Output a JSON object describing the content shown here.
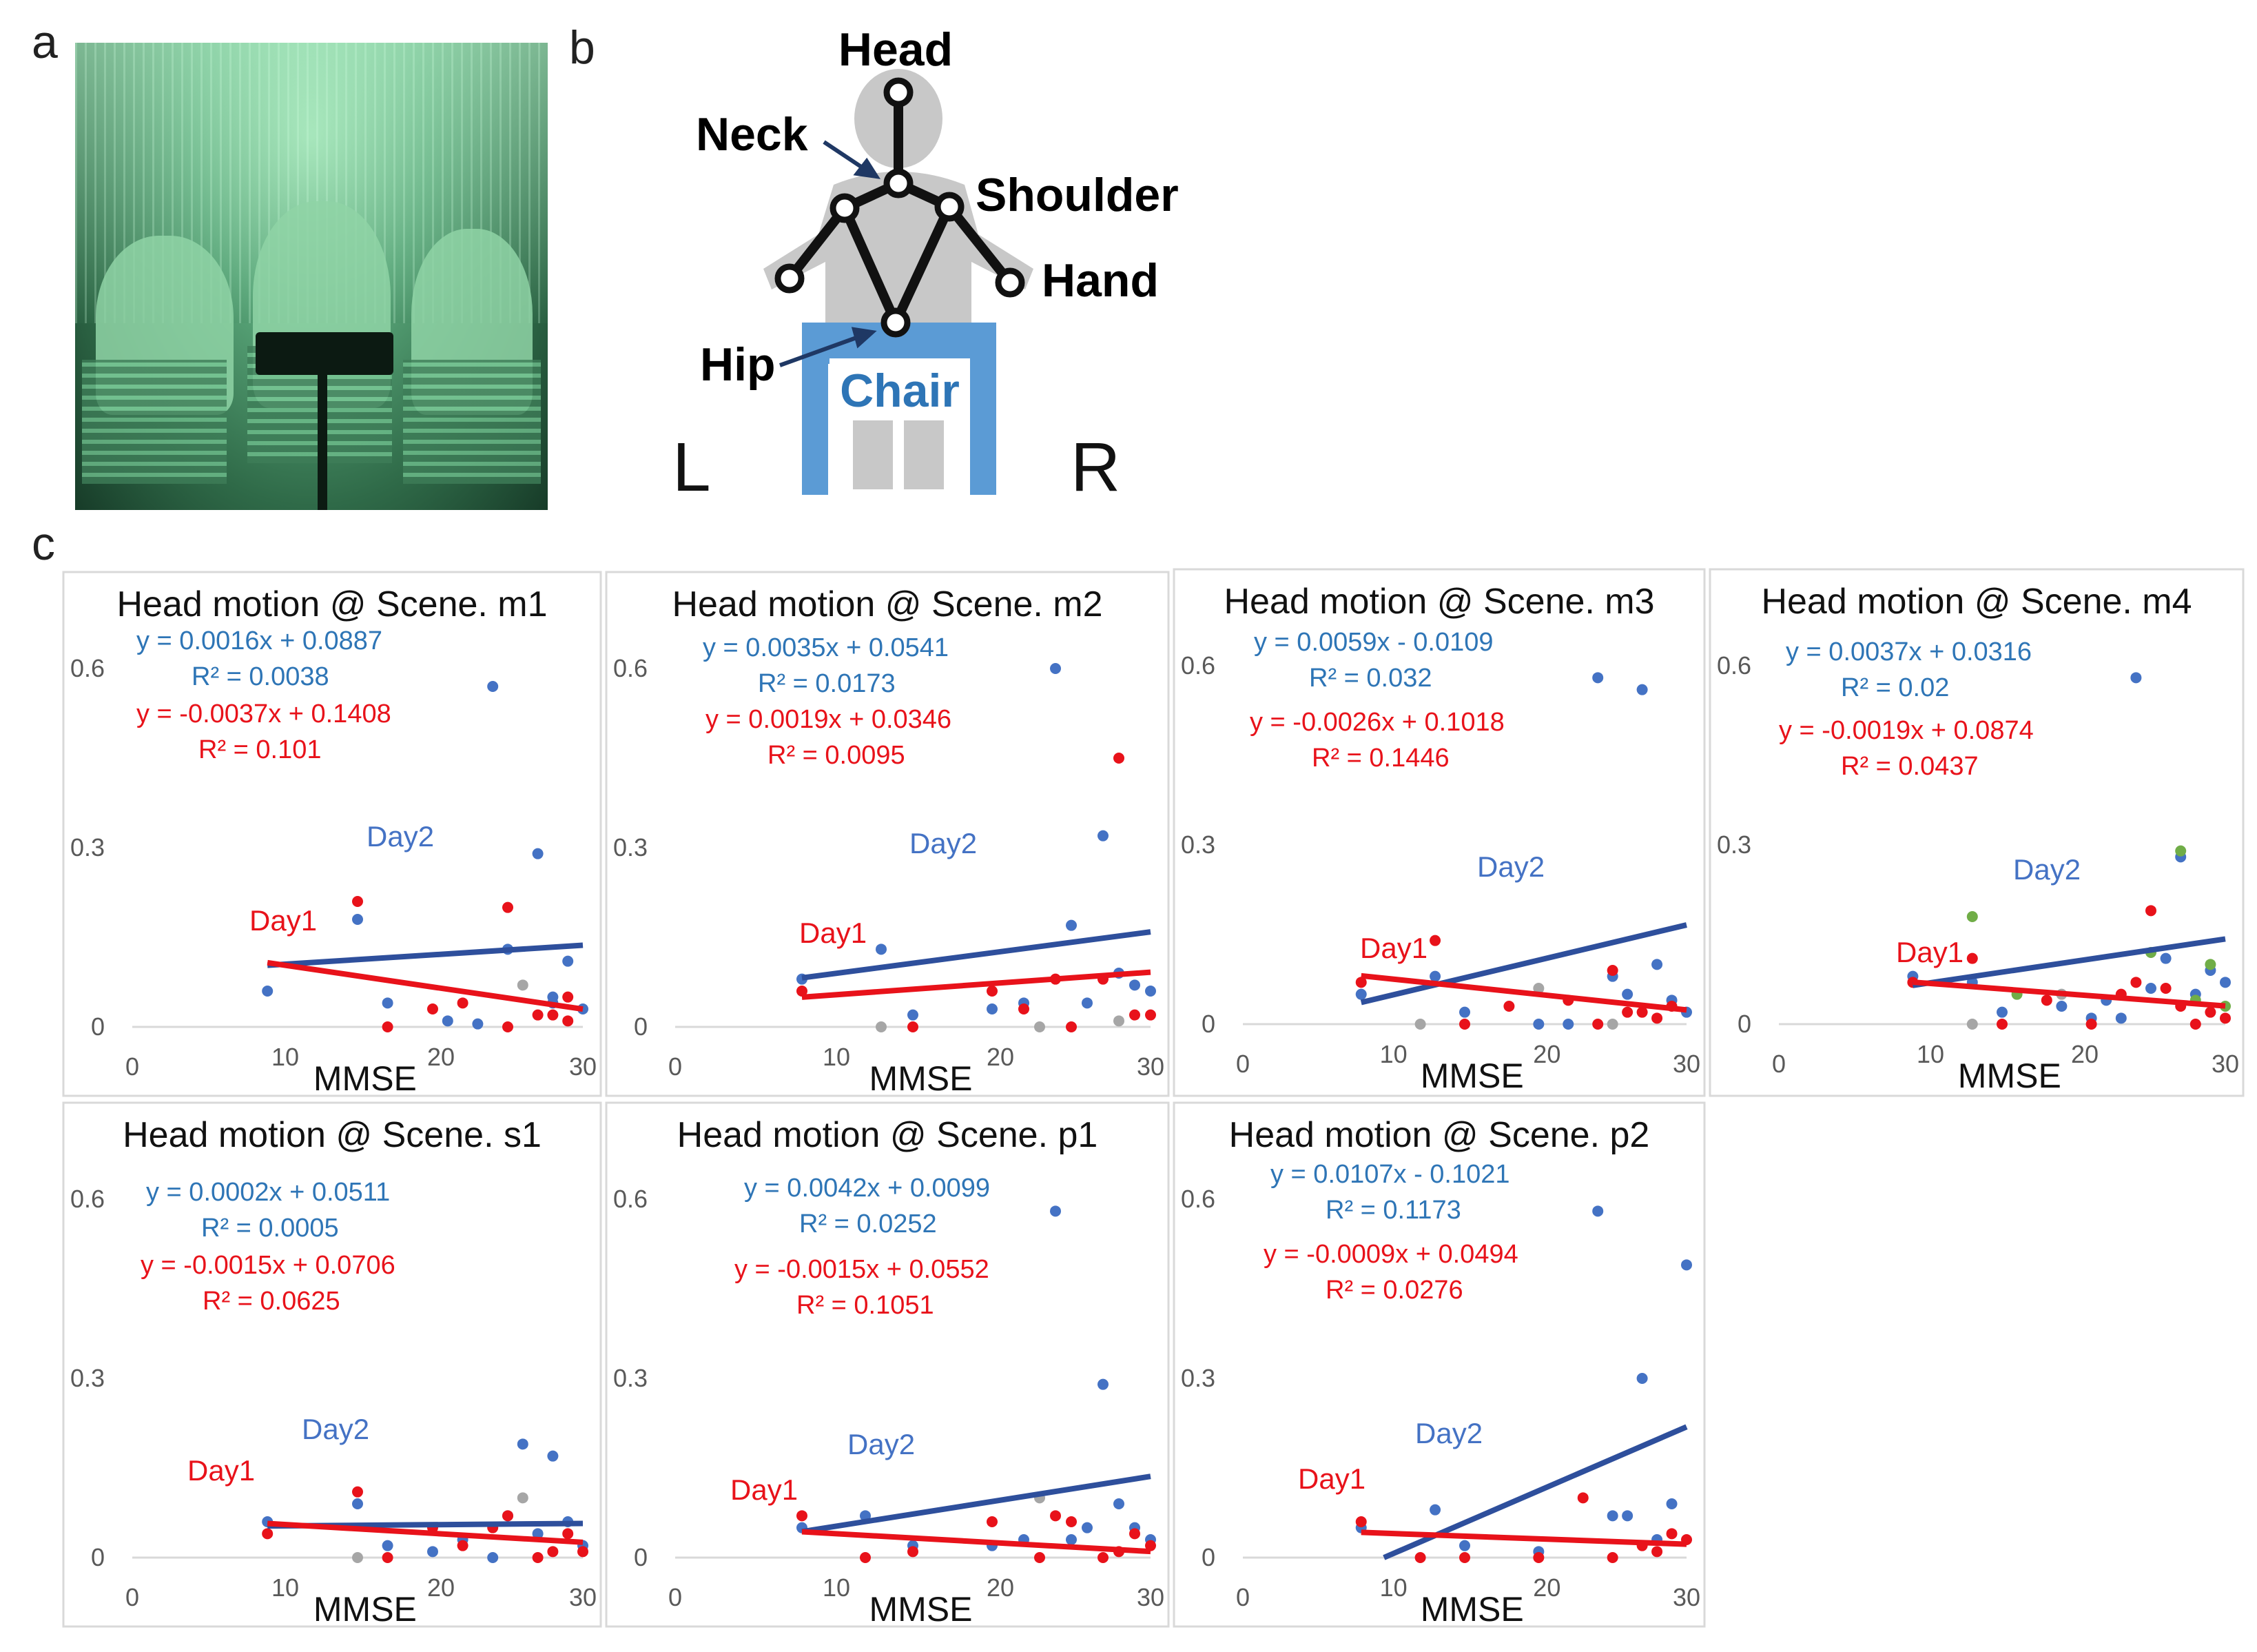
{
  "panel_labels": {
    "a": "a",
    "b": "b",
    "c": "c"
  },
  "skeleton": {
    "joints": [
      "Head",
      "Neck",
      "Shoulder",
      "Hand",
      "Hip"
    ],
    "chair_label": "Chair",
    "left": "L",
    "right": "R"
  },
  "colors": {
    "day1": "#e8121a",
    "day2": "#2e4f9c",
    "day2_text": "#4472c4",
    "eq_blue": "#2e75b6",
    "gray": "#a6a6a6",
    "green": "#70ad47"
  },
  "chart_data": [
    {
      "type": "scatter",
      "title": "Head motion @ Scene. m1",
      "xlabel": "MMSE",
      "xlim": [
        0,
        30
      ],
      "ylim": [
        0,
        0.6
      ],
      "xticks": [
        "0",
        "10",
        "20",
        "30"
      ],
      "yticks": [
        "0",
        "0.3",
        "0.6"
      ],
      "legend_day1": "Day1",
      "legend_day2": "Day2",
      "eq_day2": "y = 0.0016x + 0.0887",
      "r2_day2": "R² = 0.0038",
      "eq_day1": "y = -0.0037x + 0.1408",
      "r2_day1": "R² = 0.101",
      "fit_day2": {
        "x": [
          9,
          30
        ],
        "y": [
          0.1031,
          0.1367
        ]
      },
      "fit_day1": {
        "x": [
          9,
          30
        ],
        "y": [
          0.1075,
          0.0298
        ]
      },
      "series": [
        {
          "name": "Day2",
          "x": [
            9,
            15,
            17,
            21,
            23,
            24,
            25,
            27,
            28,
            29,
            28,
            30
          ],
          "y": [
            0.06,
            0.18,
            0.04,
            0.01,
            0.005,
            0.57,
            0.13,
            0.29,
            0.05,
            0.11,
            0.04,
            0.03
          ]
        },
        {
          "name": "Day1",
          "x": [
            15,
            17,
            20,
            22,
            25,
            25,
            27,
            28,
            29,
            29
          ],
          "y": [
            0.21,
            0.0,
            0.03,
            0.04,
            0.2,
            0.0,
            0.02,
            0.02,
            0.05,
            0.01
          ]
        },
        {
          "name": "Other",
          "x": [
            26
          ],
          "y": [
            0.07
          ]
        }
      ]
    },
    {
      "type": "scatter",
      "title": "Head motion @ Scene. m2",
      "xlabel": "MMSE",
      "xlim": [
        0,
        30
      ],
      "ylim": [
        0,
        0.6
      ],
      "xticks": [
        "0",
        "10",
        "20",
        "30"
      ],
      "yticks": [
        "0",
        "0.3",
        "0.6"
      ],
      "legend_day1": "Day1",
      "legend_day2": "Day2",
      "eq_day2": "y = 0.0035x + 0.0541",
      "r2_day2": "R² = 0.0173",
      "eq_day1": "y = 0.0019x + 0.0346",
      "r2_day1": "R² = 0.0095",
      "fit_day2": {
        "x": [
          8,
          30
        ],
        "y": [
          0.0821,
          0.1591
        ]
      },
      "fit_day1": {
        "x": [
          8,
          30
        ],
        "y": [
          0.0498,
          0.0916
        ]
      },
      "series": [
        {
          "name": "Day2",
          "x": [
            8,
            13,
            15,
            20,
            22,
            24,
            25,
            26,
            27,
            28,
            29,
            30
          ],
          "y": [
            0.08,
            0.13,
            0.02,
            0.03,
            0.04,
            0.6,
            0.17,
            0.04,
            0.32,
            0.09,
            0.07,
            0.06
          ]
        },
        {
          "name": "Day1",
          "x": [
            8,
            15,
            20,
            22,
            24,
            25,
            27,
            28,
            29,
            30
          ],
          "y": [
            0.06,
            0.0,
            0.06,
            0.03,
            0.08,
            0.0,
            0.08,
            0.45,
            0.02,
            0.02
          ]
        },
        {
          "name": "Gray",
          "x": [
            13,
            23,
            28
          ],
          "y": [
            0.0,
            0.0,
            0.01
          ]
        }
      ]
    },
    {
      "type": "scatter",
      "title": "Head motion @ Scene. m3",
      "xlabel": "MMSE",
      "xlim": [
        0,
        30
      ],
      "ylim": [
        0,
        0.6
      ],
      "xticks": [
        "0",
        "10",
        "20",
        "30"
      ],
      "yticks": [
        "0",
        "0.3",
        "0.6"
      ],
      "legend_day1": "Day1",
      "legend_day2": "Day2",
      "eq_day2": "y = 0.0059x - 0.0109",
      "r2_day2": "R² = 0.032",
      "eq_day1": "y = -0.0026x + 0.1018",
      "r2_day1": "R² = 0.1446",
      "fit_day2": {
        "x": [
          8,
          30
        ],
        "y": [
          0.0363,
          0.1661
        ]
      },
      "fit_day1": {
        "x": [
          8,
          30
        ],
        "y": [
          0.081,
          0.0238
        ]
      },
      "series": [
        {
          "name": "Day2",
          "x": [
            8,
            13,
            15,
            20,
            22,
            24,
            25,
            26,
            27,
            28,
            29,
            30
          ],
          "y": [
            0.05,
            0.08,
            0.02,
            0.0,
            0.0,
            0.58,
            0.08,
            0.05,
            0.56,
            0.1,
            0.04,
            0.02
          ]
        },
        {
          "name": "Day1",
          "x": [
            8,
            13,
            15,
            18,
            22,
            24,
            25,
            26,
            27,
            28,
            29
          ],
          "y": [
            0.07,
            0.14,
            0.0,
            0.03,
            0.04,
            0.0,
            0.09,
            0.02,
            0.02,
            0.01,
            0.03
          ]
        },
        {
          "name": "Gray",
          "x": [
            12,
            20,
            25
          ],
          "y": [
            0.0,
            0.06,
            0.0
          ]
        }
      ]
    },
    {
      "type": "scatter",
      "title": "Head motion @ Scene. m4",
      "xlabel": "MMSE",
      "xlim": [
        0,
        30
      ],
      "ylim": [
        0,
        0.6
      ],
      "xticks": [
        "0",
        "10",
        "20",
        "30"
      ],
      "yticks": [
        "0",
        "0.3",
        "0.6"
      ],
      "legend_day1": "Day1",
      "legend_day2": "Day2",
      "eq_day2": "y = 0.0037x + 0.0316",
      "r2_day2": "R² = 0.02",
      "eq_day1": "y = -0.0019x + 0.0874",
      "r2_day1": "R² = 0.0437",
      "fit_day2": {
        "x": [
          9,
          30
        ],
        "y": [
          0.0649,
          0.1426
        ]
      },
      "fit_day1": {
        "x": [
          9,
          30
        ],
        "y": [
          0.0703,
          0.0304
        ]
      },
      "series": [
        {
          "name": "Day2",
          "x": [
            9,
            13,
            15,
            19,
            21,
            22,
            23,
            24,
            25,
            26,
            27,
            28,
            29,
            30
          ],
          "y": [
            0.08,
            0.07,
            0.02,
            0.03,
            0.01,
            0.04,
            0.01,
            0.58,
            0.06,
            0.11,
            0.28,
            0.05,
            0.09,
            0.07
          ]
        },
        {
          "name": "Day1",
          "x": [
            9,
            13,
            15,
            18,
            21,
            23,
            24,
            25,
            26,
            27,
            28,
            29,
            30
          ],
          "y": [
            0.07,
            0.11,
            0.0,
            0.04,
            0.0,
            0.05,
            0.07,
            0.19,
            0.06,
            0.03,
            0.0,
            0.02,
            0.01
          ]
        },
        {
          "name": "Green",
          "x": [
            13,
            16,
            25,
            27,
            28,
            29,
            30
          ],
          "y": [
            0.18,
            0.05,
            0.12,
            0.29,
            0.04,
            0.1,
            0.03
          ]
        },
        {
          "name": "Gray",
          "x": [
            13,
            19
          ],
          "y": [
            0.0,
            0.05
          ]
        }
      ]
    },
    {
      "type": "scatter",
      "title": "Head motion @ Scene. s1",
      "xlabel": "MMSE",
      "xlim": [
        0,
        30
      ],
      "ylim": [
        0,
        0.6
      ],
      "xticks": [
        "0",
        "10",
        "20",
        "30"
      ],
      "yticks": [
        "0",
        "0.3",
        "0.6"
      ],
      "legend_day1": "Day1",
      "legend_day2": "Day2",
      "eq_day2": "y = 0.0002x + 0.0511",
      "r2_day2": "R² = 0.0005",
      "eq_day1": "y = -0.0015x + 0.0706",
      "r2_day1": "R² = 0.0625",
      "fit_day2": {
        "x": [
          9,
          30
        ],
        "y": [
          0.0529,
          0.0571
        ]
      },
      "fit_day1": {
        "x": [
          9,
          30
        ],
        "y": [
          0.0571,
          0.0256
        ]
      },
      "series": [
        {
          "name": "Day2",
          "x": [
            9,
            15,
            17,
            20,
            22,
            24,
            25,
            26,
            27,
            28,
            29,
            30
          ],
          "y": [
            0.06,
            0.09,
            0.02,
            0.01,
            0.03,
            0.0,
            0.07,
            0.19,
            0.04,
            0.17,
            0.06,
            0.02
          ]
        },
        {
          "name": "Day1",
          "x": [
            9,
            15,
            17,
            20,
            22,
            24,
            25,
            27,
            28,
            29,
            30
          ],
          "y": [
            0.04,
            0.11,
            0.0,
            0.05,
            0.02,
            0.05,
            0.07,
            0.0,
            0.01,
            0.04,
            0.01
          ]
        },
        {
          "name": "Gray",
          "x": [
            15,
            26
          ],
          "y": [
            0.0,
            0.1
          ]
        }
      ]
    },
    {
      "type": "scatter",
      "title": "Head motion @ Scene. p1",
      "xlabel": "MMSE",
      "xlim": [
        0,
        30
      ],
      "ylim": [
        0,
        0.6
      ],
      "xticks": [
        "0",
        "10",
        "20",
        "30"
      ],
      "yticks": [
        "0",
        "0.3",
        "0.6"
      ],
      "legend_day1": "Day1",
      "legend_day2": "Day2",
      "eq_day2": "y = 0.0042x + 0.0099",
      "r2_day2": "R² = 0.0252",
      "eq_day1": "y = -0.0015x + 0.0552",
      "r2_day1": "R² = 0.1051",
      "fit_day2": {
        "x": [
          8,
          30
        ],
        "y": [
          0.0435,
          0.1359
        ]
      },
      "fit_day1": {
        "x": [
          8,
          30
        ],
        "y": [
          0.0432,
          0.0102
        ]
      },
      "series": [
        {
          "name": "Day2",
          "x": [
            8,
            12,
            15,
            20,
            22,
            24,
            25,
            26,
            27,
            28,
            29,
            30
          ],
          "y": [
            0.05,
            0.07,
            0.02,
            0.02,
            0.03,
            0.58,
            0.03,
            0.05,
            0.29,
            0.09,
            0.05,
            0.03
          ]
        },
        {
          "name": "Day1",
          "x": [
            8,
            12,
            15,
            20,
            23,
            24,
            25,
            27,
            28,
            29,
            30
          ],
          "y": [
            0.07,
            0.0,
            0.01,
            0.06,
            0.0,
            0.07,
            0.06,
            0.0,
            0.01,
            0.04,
            0.02
          ]
        },
        {
          "name": "Gray",
          "x": [
            23
          ],
          "y": [
            0.1
          ]
        }
      ]
    },
    {
      "type": "scatter",
      "title": "Head motion @ Scene. p2",
      "xlabel": "MMSE",
      "xlim": [
        0,
        30
      ],
      "ylim": [
        0,
        0.6
      ],
      "xticks": [
        "0",
        "10",
        "20",
        "30"
      ],
      "yticks": [
        "0",
        "0.3",
        "0.6"
      ],
      "legend_day1": "Day1",
      "legend_day2": "Day2",
      "eq_day2": "y = 0.0107x - 0.1021",
      "r2_day2": "R² = 0.1173",
      "eq_day1": "y = -0.0009x + 0.0494",
      "r2_day1": "R² = 0.0276",
      "fit_day2": {
        "x": [
          9.54,
          30
        ],
        "y": [
          0.0,
          0.2189
        ]
      },
      "fit_day1": {
        "x": [
          8,
          30
        ],
        "y": [
          0.0422,
          0.0224
        ]
      },
      "series": [
        {
          "name": "Day2",
          "x": [
            8,
            13,
            15,
            20,
            24,
            25,
            26,
            27,
            28,
            29,
            30
          ],
          "y": [
            0.05,
            0.08,
            0.02,
            0.01,
            0.58,
            0.07,
            0.07,
            0.3,
            0.03,
            0.09,
            0.49
          ]
        },
        {
          "name": "Day1",
          "x": [
            8,
            12,
            15,
            20,
            23,
            25,
            27,
            28,
            29,
            30
          ],
          "y": [
            0.06,
            0.0,
            0.0,
            0.0,
            0.1,
            0.0,
            0.02,
            0.01,
            0.04,
            0.03
          ]
        }
      ]
    }
  ]
}
